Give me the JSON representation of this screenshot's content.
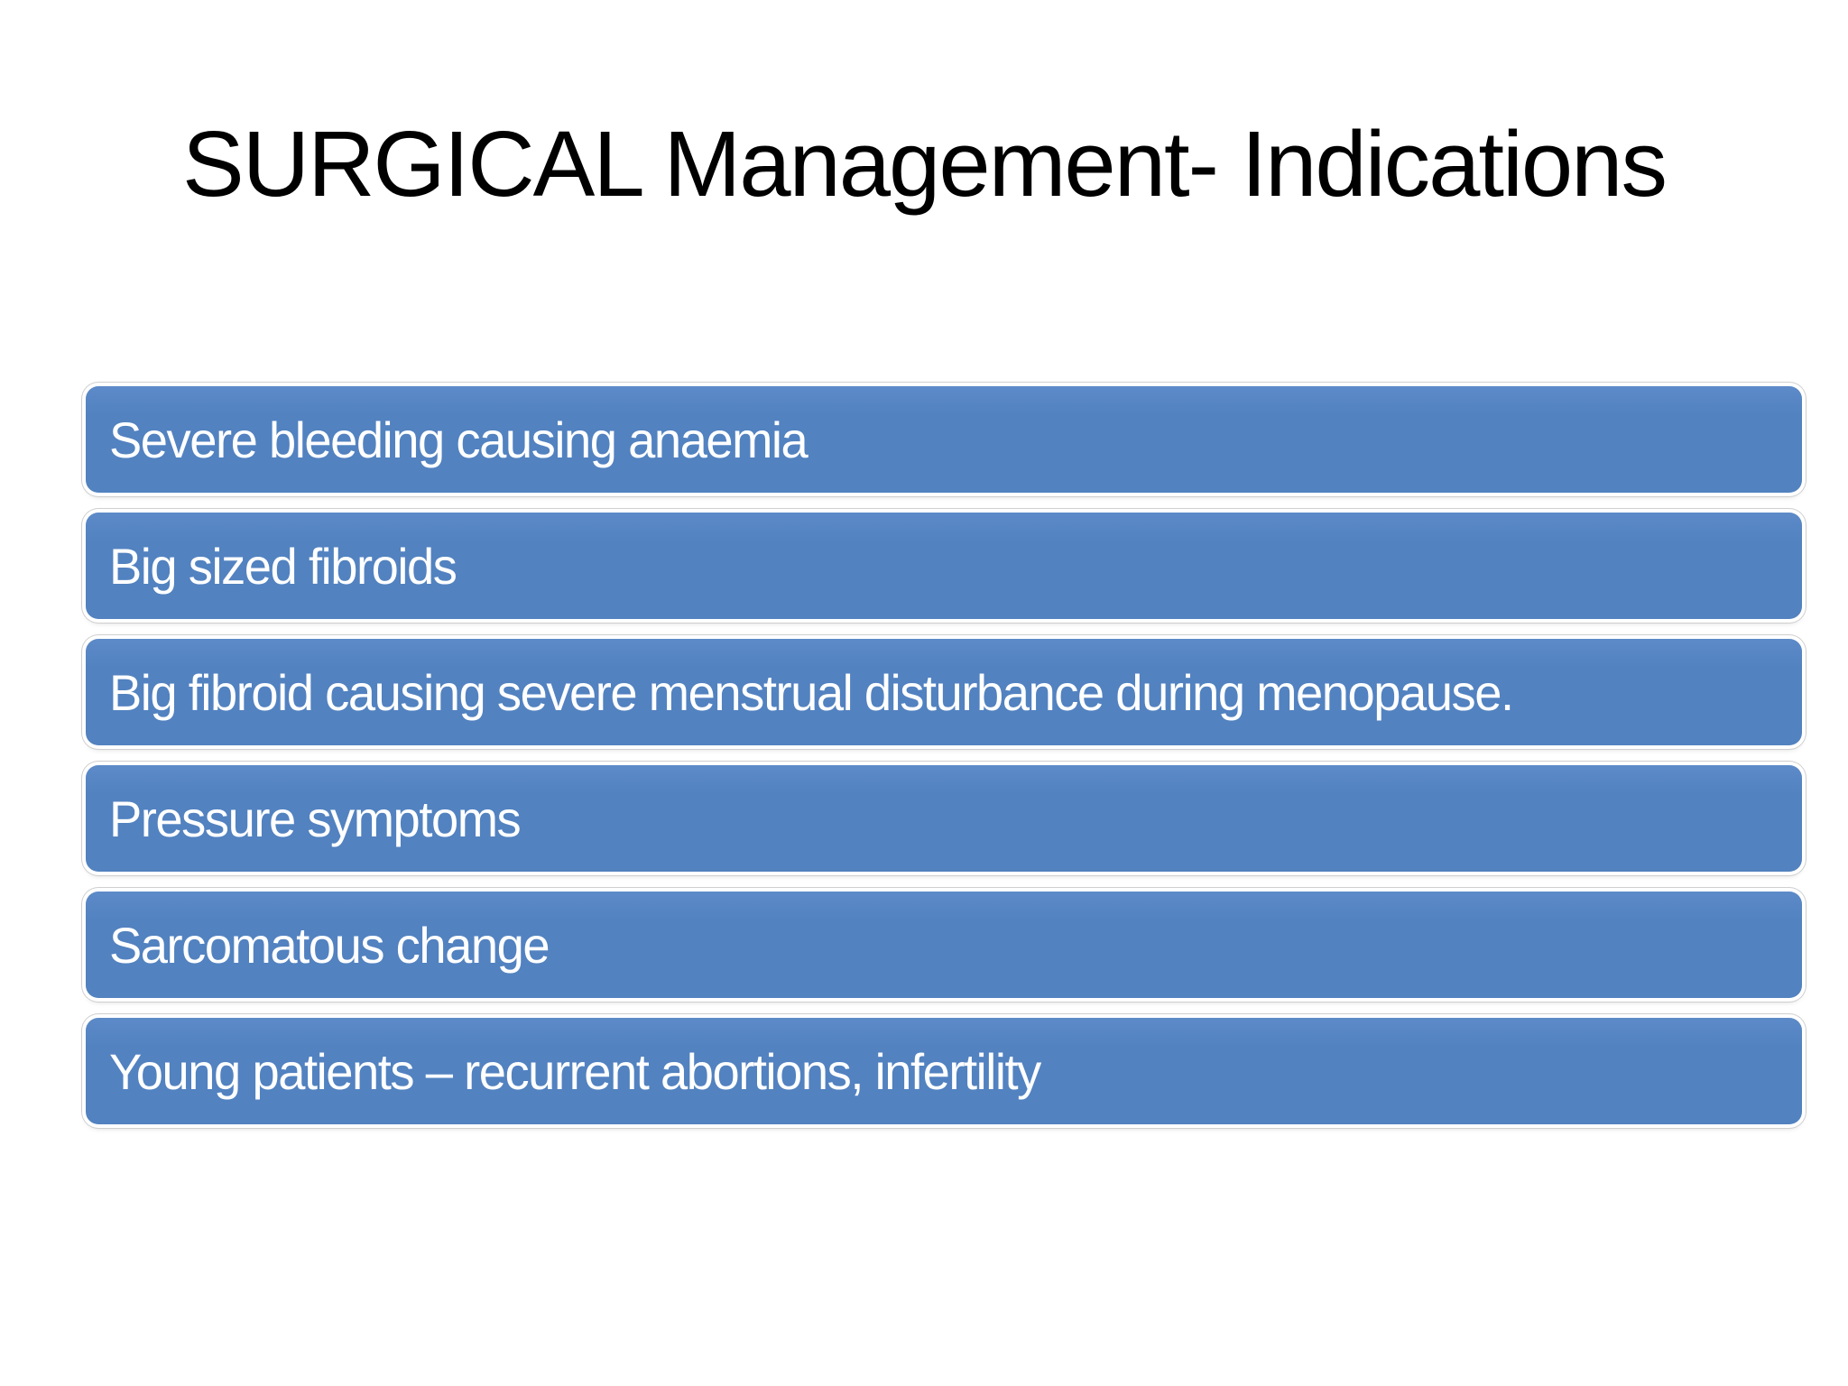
{
  "slide": {
    "title": "SURGICAL Management- Indications",
    "indications": [
      {
        "label": "Severe bleeding causing anaemia"
      },
      {
        "label": "Big sized fibroids"
      },
      {
        "label": "Big fibroid causing severe menstrual disturbance during menopause."
      },
      {
        "label": "Pressure symptoms"
      },
      {
        "label": "Sarcomatous change"
      },
      {
        "label": "Young patients – recurrent abortions, infertility"
      }
    ]
  },
  "colors": {
    "bar_blue": "#5282c0",
    "bar_blue_light": "#5d8ac8",
    "bar_text": "#ffffff",
    "title_text": "#000000",
    "background": "#ffffff",
    "bar_ring": "#ffffff",
    "bar_shadow_line": "#cfcfcf"
  }
}
